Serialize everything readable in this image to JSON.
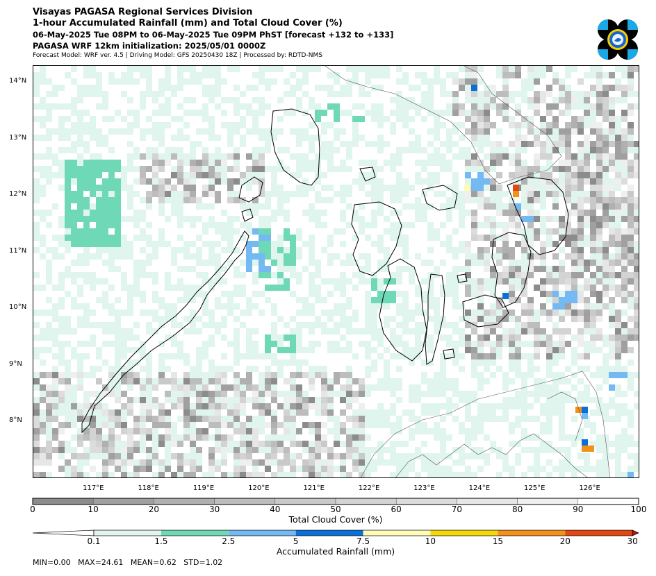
{
  "header": {
    "line1": "Visayas PAGASA Regional Services Division",
    "line2": "1-hour Accumulated Rainfall (mm) and Total Cloud Cover (%)",
    "line3": "06-May-2025 Tue 08PM to 06-May-2025 Tue 09PM PhST [forecast +132 to +133]",
    "line4": "PAGASA WRF 12km initialization: 2025/05/01 0000Z",
    "line5": "Forecast Model: WRF ver. 4.5 | Driving Model: GFS 20250430 18Z | Processed by: RDTD-NMS"
  },
  "logo_icon": "pagasa-logo",
  "map": {
    "lat_ticks": [
      "14°N",
      "13°N",
      "12°N",
      "11°N",
      "10°N",
      "9°N",
      "8°N"
    ],
    "lon_ticks": [
      "117°E",
      "118°E",
      "119°E",
      "120°E",
      "121°E",
      "122°E",
      "123°E",
      "124°E",
      "125°E",
      "126°E"
    ],
    "lat_values": [
      14,
      13,
      12,
      11,
      10,
      9,
      8
    ],
    "lon_values": [
      117,
      118,
      119,
      120,
      121,
      122,
      123,
      124,
      125,
      126
    ],
    "lat_range": [
      7.0,
      14.3
    ],
    "lon_range": [
      115.9,
      126.9
    ]
  },
  "cloud_colorbar": {
    "title": "Total Cloud Cover (%)",
    "ticks": [
      "0",
      "10",
      "20",
      "30",
      "40",
      "50",
      "60",
      "70",
      "80",
      "90",
      "100"
    ],
    "colors": [
      "#8c8c8c",
      "#a0a0a0",
      "#b0b0b0",
      "#bdbdbd",
      "#c9c9c9",
      "#d3d3d3",
      "#dcdcdc",
      "#e6e6e6",
      "#efefef",
      "#ffffff"
    ]
  },
  "rain_colorbar": {
    "title": "Accumulated Rainfall (mm)",
    "ticks": [
      "0.1",
      "1.5",
      "2.5",
      "5",
      "7.5",
      "10",
      "15",
      "20",
      "30"
    ],
    "colors": [
      "#ffffff",
      "#dff5ee",
      "#6fd8b7",
      "#74b9f2",
      "#0a6fd6",
      "#fffcb8",
      "#f5d80a",
      "#f3921a",
      "#e2480f",
      "#c01010"
    ]
  },
  "stats": {
    "text": "MIN=0.00   MAX=24.61   MEAN=0.62   STD=1.02"
  }
}
